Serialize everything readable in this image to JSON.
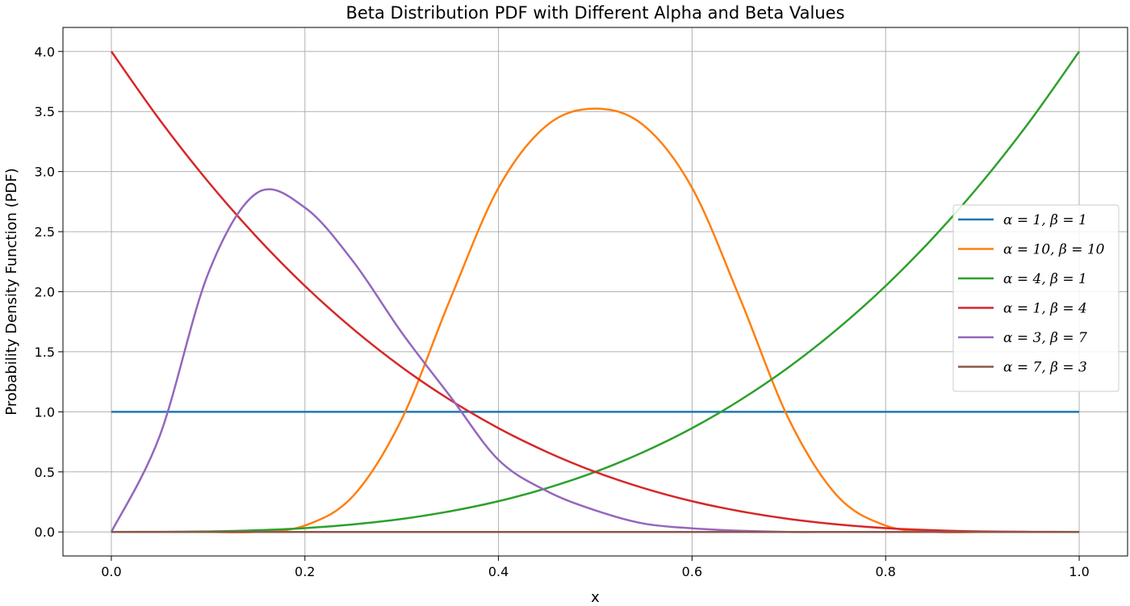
{
  "chart_data": {
    "type": "line",
    "title": "Beta Distribution PDF with Different Alpha and Beta Values",
    "xlabel": "x",
    "ylabel": "Probability Density Function (PDF)",
    "xlim": [
      -0.05,
      1.05
    ],
    "ylim": [
      -0.2,
      4.2
    ],
    "xticks": [
      0.0,
      0.2,
      0.4,
      0.6,
      0.8,
      1.0
    ],
    "xtick_labels": [
      "0.0",
      "0.2",
      "0.4",
      "0.6",
      "0.8",
      "1.0"
    ],
    "yticks": [
      0.0,
      0.5,
      1.0,
      1.5,
      2.0,
      2.5,
      3.0,
      3.5,
      4.0
    ],
    "ytick_labels": [
      "0.0",
      "0.5",
      "1.0",
      "1.5",
      "2.0",
      "2.5",
      "3.0",
      "3.5",
      "4.0"
    ],
    "grid": true,
    "legend_position": "center-right",
    "x": [
      0,
      0.05,
      0.1,
      0.15,
      0.2,
      0.25,
      0.3,
      0.35,
      0.4,
      0.45,
      0.5,
      0.55,
      0.6,
      0.65,
      0.7,
      0.75,
      0.8,
      0.85,
      0.9,
      0.95,
      1.0
    ],
    "series": [
      {
        "name": "α = 1, β = 1",
        "color": "#1f77b4",
        "values": [
          1,
          1,
          1,
          1,
          1,
          1,
          1,
          1,
          1,
          1,
          1,
          1,
          1,
          1,
          1,
          1,
          1,
          1,
          1,
          1,
          1
        ]
      },
      {
        "name": "α = 10, β = 10",
        "color": "#ff7f0e",
        "values": [
          0,
          0,
          0,
          0.001,
          0.053,
          0.301,
          0.939,
          1.935,
          2.865,
          3.385,
          3.524,
          3.385,
          2.865,
          1.935,
          0.939,
          0.301,
          0.053,
          0.001,
          0,
          0,
          0
        ]
      },
      {
        "name": "α = 4, β = 1",
        "color": "#2ca02c",
        "values": [
          0,
          0.001,
          0.004,
          0.014,
          0.032,
          0.063,
          0.108,
          0.172,
          0.256,
          0.365,
          0.5,
          0.666,
          0.864,
          1.099,
          1.372,
          1.688,
          2.048,
          2.457,
          2.916,
          3.43,
          4.0
        ]
      },
      {
        "name": "α = 1, β = 4",
        "color": "#d62728",
        "values": [
          4.0,
          3.43,
          2.916,
          2.457,
          2.048,
          1.688,
          1.372,
          1.099,
          0.864,
          0.666,
          0.5,
          0.365,
          0.256,
          0.172,
          0.108,
          0.063,
          0.032,
          0.014,
          0.004,
          0.001,
          0
        ]
      },
      {
        "name": "α = 3, β = 7",
        "color": "#9467bd",
        "values": [
          0,
          0.8,
          2.15,
          2.82,
          2.7,
          2.25,
          1.66,
          1.13,
          0.6,
          0.34,
          0.18,
          0.07,
          0.03,
          0.01,
          0,
          0,
          0,
          0,
          0,
          0,
          0
        ]
      },
      {
        "name": "α = 7, β = 3",
        "color": "#8c564b",
        "values": [
          0,
          0,
          0,
          0,
          0,
          0,
          0,
          0,
          0,
          0,
          0,
          0,
          0,
          0,
          0,
          0,
          0,
          0,
          0,
          0,
          0
        ]
      }
    ]
  }
}
